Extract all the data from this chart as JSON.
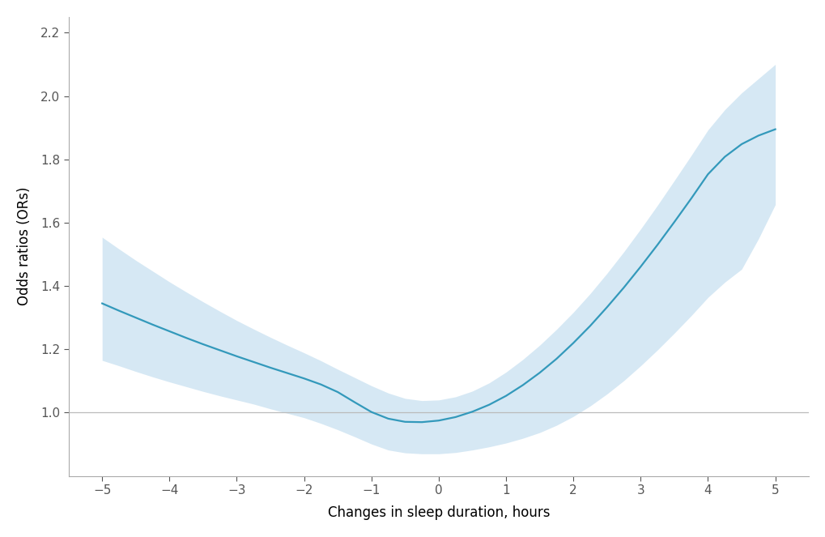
{
  "xlabel": "Changes in sleep duration, hours",
  "ylabel": "Odds ratios (ORs)",
  "xlim": [
    -5.5,
    5.5
  ],
  "ylim": [
    0.8,
    2.25
  ],
  "xticks": [
    -5,
    -4,
    -3,
    -2,
    -1,
    0,
    1,
    2,
    3,
    4,
    5
  ],
  "yticks": [
    1.0,
    1.2,
    1.4,
    1.6,
    1.8,
    2.0,
    2.2
  ],
  "reference_y": 1.0,
  "line_color": "#3399bb",
  "ci_color": "#c5dff0",
  "ci_alpha": 0.7,
  "line_width": 1.6,
  "background_color": "#ffffff",
  "spine_color": "#aaaaaa",
  "tick_color": "#555555",
  "label_fontsize": 12,
  "tick_fontsize": 11,
  "x_data": [
    -5.0,
    -4.75,
    -4.5,
    -4.25,
    -4.0,
    -3.75,
    -3.5,
    -3.25,
    -3.0,
    -2.75,
    -2.5,
    -2.25,
    -2.0,
    -1.75,
    -1.5,
    -1.25,
    -1.0,
    -0.75,
    -0.5,
    -0.25,
    0.0,
    0.25,
    0.5,
    0.75,
    1.0,
    1.25,
    1.5,
    1.75,
    2.0,
    2.25,
    2.5,
    2.75,
    3.0,
    3.25,
    3.5,
    3.75,
    4.0,
    4.25,
    4.5,
    4.75,
    5.0
  ],
  "or_data": [
    1.345,
    1.322,
    1.3,
    1.278,
    1.257,
    1.236,
    1.216,
    1.197,
    1.178,
    1.16,
    1.142,
    1.125,
    1.108,
    1.089,
    1.065,
    1.033,
    1.002,
    0.981,
    0.971,
    0.97,
    0.975,
    0.986,
    1.003,
    1.025,
    1.053,
    1.087,
    1.126,
    1.17,
    1.22,
    1.274,
    1.333,
    1.395,
    1.461,
    1.53,
    1.602,
    1.676,
    1.753,
    1.808,
    1.848,
    1.875,
    1.895
  ],
  "ci_lower": [
    1.165,
    1.148,
    1.13,
    1.113,
    1.097,
    1.082,
    1.067,
    1.053,
    1.04,
    1.027,
    1.012,
    0.998,
    0.984,
    0.966,
    0.946,
    0.924,
    0.901,
    0.882,
    0.873,
    0.87,
    0.87,
    0.874,
    0.882,
    0.892,
    0.904,
    0.919,
    0.937,
    0.96,
    0.988,
    1.021,
    1.059,
    1.101,
    1.148,
    1.198,
    1.251,
    1.306,
    1.364,
    1.412,
    1.453,
    1.549,
    1.657
  ],
  "ci_upper": [
    1.554,
    1.517,
    1.481,
    1.447,
    1.413,
    1.381,
    1.35,
    1.32,
    1.291,
    1.264,
    1.238,
    1.213,
    1.189,
    1.164,
    1.137,
    1.111,
    1.085,
    1.062,
    1.045,
    1.038,
    1.04,
    1.05,
    1.068,
    1.094,
    1.128,
    1.168,
    1.213,
    1.263,
    1.317,
    1.376,
    1.44,
    1.508,
    1.58,
    1.655,
    1.733,
    1.812,
    1.893,
    1.957,
    2.01,
    2.055,
    2.1
  ]
}
